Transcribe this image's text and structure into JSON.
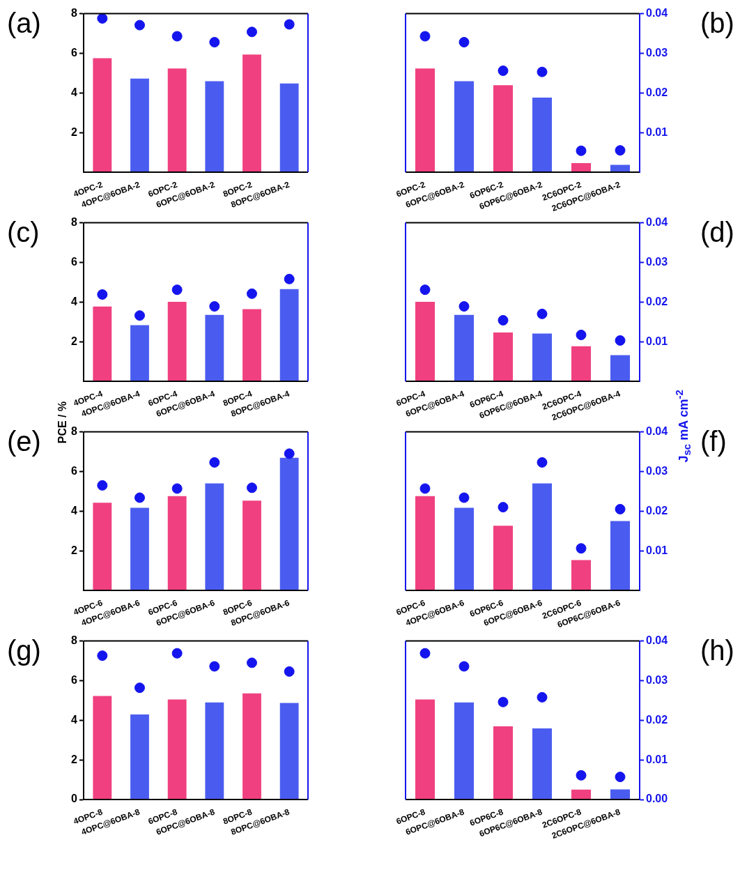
{
  "chart_data": [
    {
      "type": "bar",
      "annotations": [
        "(a)"
      ],
      "categories": [
        "4OPC-2",
        "4OPC@6OBA-2",
        "6OPC-2",
        "6OPC@6OBA-2",
        "8OPC-2",
        "8OPC@6OBA-2"
      ],
      "series": [
        {
          "values": [
            5.75,
            4.72,
            5.23,
            4.59,
            5.94,
            4.48
          ],
          "colors": [
            "#f0407f",
            "#4a5cf0",
            "#f0407f",
            "#4a5cf0",
            "#f0407f",
            "#4a5cf0"
          ]
        },
        {
          "type": "scatter",
          "axis": "y2",
          "color": "#1515ee",
          "values": [
            0.0388,
            0.0371,
            0.0343,
            0.0328,
            0.0354,
            0.0373
          ]
        }
      ],
      "marker": "circle",
      "ylim": [
        0,
        8
      ],
      "yticks": [
        2,
        4,
        6,
        8
      ],
      "y2lim": [
        0,
        0.04
      ]
    },
    {
      "type": "bar",
      "annotations": [
        "(b)"
      ],
      "categories": [
        "6OPC-2",
        "6OPC@6OBA-2",
        "6OP6C-2",
        "6OP6C@6OBA-2",
        "2C6OPC-2",
        "2C6OPC@6OBA-2"
      ],
      "series": [
        {
          "values": [
            5.23,
            4.59,
            4.39,
            3.76,
            0.46,
            0.37
          ],
          "colors": [
            "#f0407f",
            "#4a5cf0",
            "#f0407f",
            "#4a5cf0",
            "#f0407f",
            "#4a5cf0"
          ]
        },
        {
          "type": "scatter",
          "axis": "y2",
          "color": "#1515ee",
          "values": [
            0.0343,
            0.0328,
            0.0256,
            0.0253,
            0.0054,
            0.0055
          ]
        }
      ],
      "marker": "circle",
      "ylim": [
        0,
        8
      ],
      "y2lim": [
        0,
        0.04
      ],
      "y2ticks": [
        0.01,
        0.02,
        0.03,
        0.04
      ]
    },
    {
      "type": "bar",
      "annotations": [
        "(c)"
      ],
      "ylabel": "PCE / %",
      "categories": [
        "4OPC-4",
        "4OPC@6OBA-4",
        "6OPC-4",
        "6OPC@6OBA-4",
        "8OPC-4",
        "8OPC@6OBA-4"
      ],
      "series": [
        {
          "values": [
            3.77,
            2.83,
            4.01,
            3.35,
            3.64,
            4.65
          ],
          "colors": [
            "#f0407f",
            "#4a5cf0",
            "#f0407f",
            "#4a5cf0",
            "#f0407f",
            "#4a5cf0"
          ]
        },
        {
          "type": "scatter",
          "axis": "y2",
          "color": "#1515ee",
          "values": [
            0.0219,
            0.0166,
            0.0231,
            0.0189,
            0.0221,
            0.0258
          ]
        }
      ],
      "marker": "circle",
      "ylim": [
        0,
        8
      ],
      "yticks": [
        2,
        4,
        6,
        8
      ],
      "y2lim": [
        0,
        0.04
      ]
    },
    {
      "type": "bar",
      "annotations": [
        "(d)"
      ],
      "y2label": "J$_{sc}$ mA cm$^{-2}$",
      "categories": [
        "6OPC-4",
        "6OPC@6OBA-4",
        "6OP6C-4",
        "6OP6C@6OBA-4",
        "2C6OPC-4",
        "2C6OPC@6OBA-4"
      ],
      "series": [
        {
          "values": [
            4.01,
            3.35,
            2.46,
            2.41,
            1.77,
            1.32
          ],
          "colors": [
            "#f0407f",
            "#4a5cf0",
            "#f0407f",
            "#4a5cf0",
            "#f0407f",
            "#4a5cf0"
          ]
        },
        {
          "type": "scatter",
          "axis": "y2",
          "color": "#1515ee",
          "values": [
            0.0231,
            0.0189,
            0.0154,
            0.017,
            0.0117,
            0.0103
          ]
        }
      ],
      "marker": "circle",
      "ylim": [
        0,
        8
      ],
      "y2lim": [
        0,
        0.04
      ],
      "y2ticks": [
        0.01,
        0.02,
        0.03,
        0.04
      ]
    },
    {
      "type": "bar",
      "annotations": [
        "(e)"
      ],
      "categories": [
        "4OPC-6",
        "4OPC@6OBA-6",
        "6OPC-6",
        "6OPC@6OBA-6",
        "8OPC-6",
        "8OPC@6OBA-6"
      ],
      "series": [
        {
          "values": [
            4.42,
            4.17,
            4.76,
            5.4,
            4.53,
            6.69
          ],
          "colors": [
            "#f0407f",
            "#4a5cf0",
            "#f0407f",
            "#4a5cf0",
            "#f0407f",
            "#4a5cf0"
          ]
        },
        {
          "type": "scatter",
          "axis": "y2",
          "color": "#1515ee",
          "values": [
            0.0265,
            0.0234,
            0.0257,
            0.0323,
            0.0259,
            0.0345
          ]
        }
      ],
      "marker": "circle",
      "ylim": [
        0,
        8
      ],
      "yticks": [
        2,
        4,
        6,
        8
      ],
      "y2lim": [
        0,
        0.04
      ]
    },
    {
      "type": "bar",
      "annotations": [
        "(f)"
      ],
      "categories": [
        "6OPC-6",
        "4OPC@6OBA-6",
        "6OP6C-6",
        "6OPC@6OBA-6",
        "2C6OPC-6",
        "6OP6C@6OBA-6"
      ],
      "series": [
        {
          "values": [
            4.76,
            4.17,
            3.26,
            5.4,
            1.53,
            3.5
          ],
          "colors": [
            "#f0407f",
            "#4a5cf0",
            "#f0407f",
            "#4a5cf0",
            "#f0407f",
            "#4a5cf0"
          ]
        },
        {
          "type": "scatter",
          "axis": "y2",
          "color": "#1515ee",
          "values": [
            0.0257,
            0.0234,
            0.021,
            0.0323,
            0.0106,
            0.0205
          ]
        }
      ],
      "marker": "circle",
      "ylim": [
        0,
        8
      ],
      "y2lim": [
        0,
        0.04
      ],
      "y2ticks": [
        0.01,
        0.02,
        0.03,
        0.04
      ]
    },
    {
      "type": "bar",
      "annotations": [
        "(g)"
      ],
      "categories": [
        "4OPC-8",
        "4OPC@6OBA-8",
        "6OPC-8",
        "6OPC@6OBA-8",
        "8OPC-8",
        "8OPC@6OBA-8"
      ],
      "series": [
        {
          "values": [
            5.22,
            4.29,
            5.05,
            4.9,
            5.36,
            4.87
          ],
          "colors": [
            "#f0407f",
            "#4a5cf0",
            "#f0407f",
            "#4a5cf0",
            "#f0407f",
            "#4a5cf0"
          ]
        },
        {
          "type": "scatter",
          "axis": "y2",
          "color": "#1515ee",
          "values": [
            0.0363,
            0.0282,
            0.0369,
            0.0336,
            0.0345,
            0.0323
          ]
        }
      ],
      "marker": "circle",
      "ylim": [
        0,
        8
      ],
      "yticks": [
        0,
        2,
        4,
        6,
        8
      ],
      "y2lim": [
        0,
        0.04
      ]
    },
    {
      "type": "bar",
      "annotations": [
        "(h)"
      ],
      "categories": [
        "6OPC-8",
        "6OPC@6OBA-8",
        "6OP6C-8",
        "6OP6C@6OBA-8",
        "2C6OPC-8",
        "2C6OPC@6OBA-8"
      ],
      "series": [
        {
          "values": [
            5.05,
            4.9,
            3.69,
            3.59,
            0.5,
            0.51
          ],
          "colors": [
            "#f0407f",
            "#4a5cf0",
            "#f0407f",
            "#4a5cf0",
            "#f0407f",
            "#4a5cf0"
          ]
        },
        {
          "type": "scatter",
          "axis": "y2",
          "color": "#1515ee",
          "values": [
            0.0369,
            0.0336,
            0.0246,
            0.0258,
            0.0061,
            0.0057
          ]
        }
      ],
      "marker": "circle",
      "ylim": [
        0,
        8
      ],
      "y2lim": [
        0,
        0.04
      ],
      "y2ticks": [
        {
          "value": 0,
          "label": "0.00"
        },
        0.01,
        0.02,
        0.03,
        0.04
      ]
    }
  ]
}
